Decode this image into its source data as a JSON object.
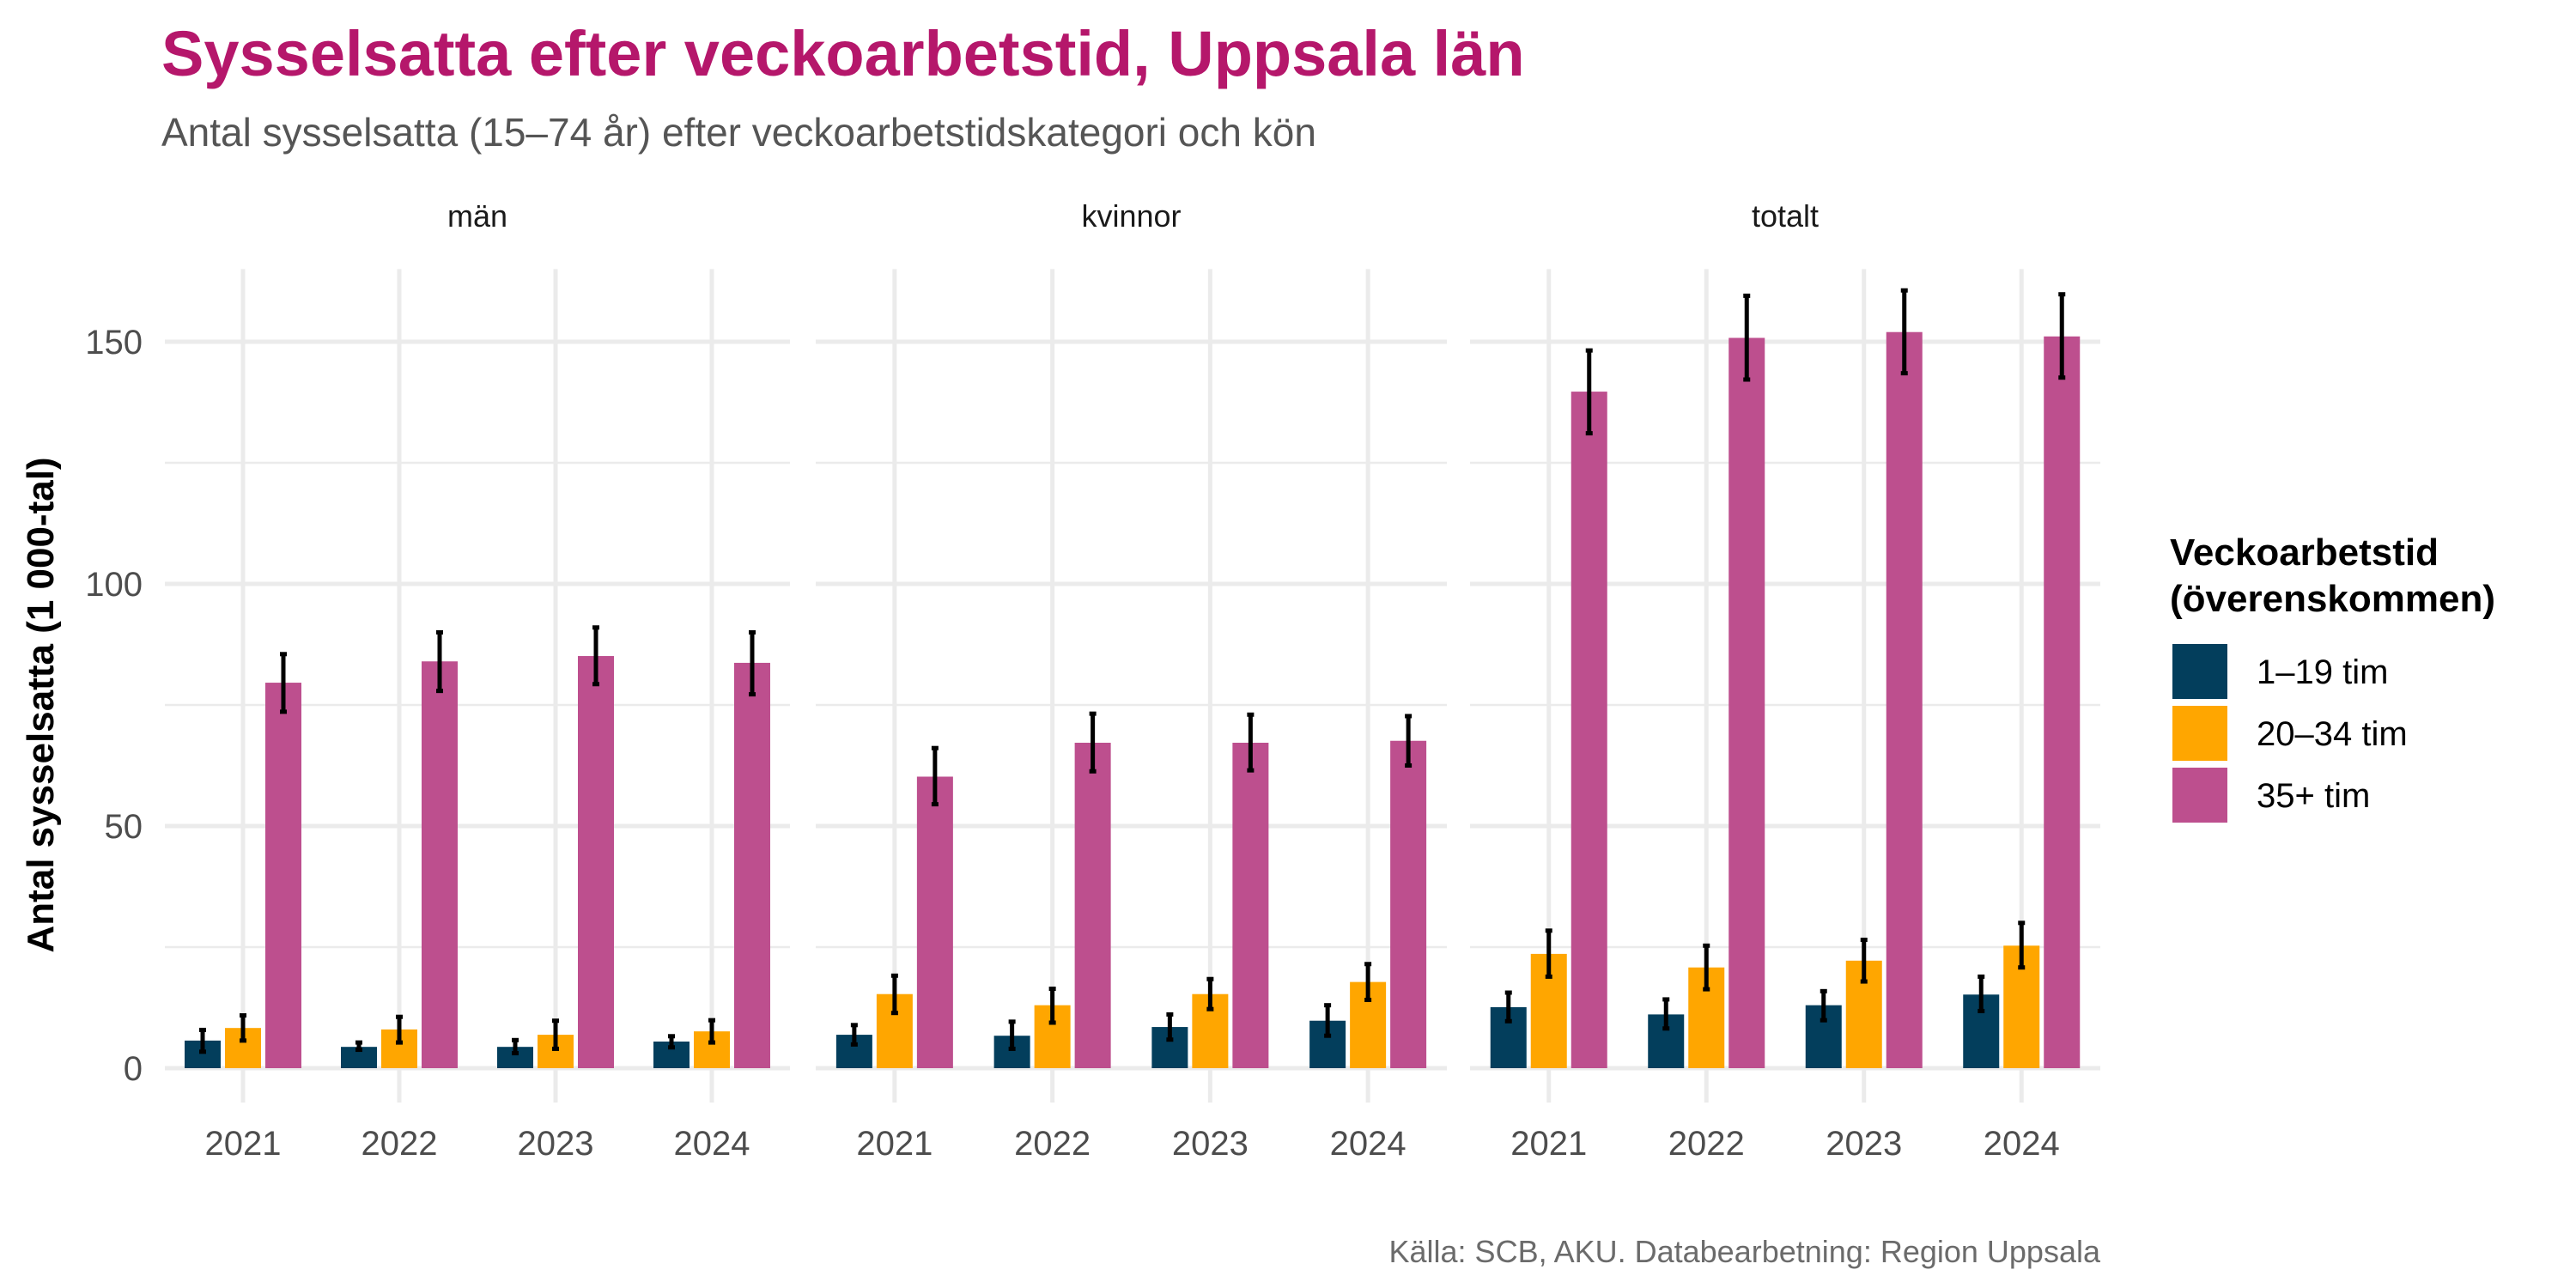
{
  "colors": {
    "title": "#B5176B",
    "1–19 tim": "#033E5C",
    "20–34 tim": "#FFA600",
    "35+ tim": "#BD4F8E"
  },
  "chart_data": {
    "type": "bar",
    "title": "Sysselsatta efter veckoarbetstid, Uppsala län",
    "subtitle": "Antal sysselsatta (15–74 år) efter veckoarbetstidskategori och kön",
    "xlabel": "",
    "ylabel": "Antal sysselsatta (1 000-tal)",
    "ylim": [
      0,
      165
    ],
    "yticks": [
      0,
      50,
      100,
      150
    ],
    "ytick_labels": [
      "0",
      "50",
      "100",
      "150"
    ],
    "grid": true,
    "legend": {
      "title": "Veckoarbetstid (överenskommen)",
      "title_lines": [
        "Veckoarbetstid",
        "(överenskommen)"
      ],
      "placement": "right",
      "entries": [
        "1–19 tim",
        "20–34 tim",
        "35+ tim"
      ]
    },
    "categories": [
      "2021",
      "2022",
      "2023",
      "2024"
    ],
    "facets": [
      {
        "name": "män",
        "series": [
          {
            "name": "1–19 tim",
            "values": [
              5.7,
              4.4,
              4.4,
              5.5
            ],
            "err_low": [
              3.4,
              3.8,
              3.1,
              4.3
            ],
            "err_high": [
              7.9,
              5.3,
              5.8,
              6.6
            ]
          },
          {
            "name": "20–34 tim",
            "values": [
              8.3,
              8.0,
              6.9,
              7.6
            ],
            "err_low": [
              5.7,
              5.3,
              4.0,
              5.3
            ],
            "err_high": [
              10.9,
              10.6,
              9.8,
              9.9
            ]
          },
          {
            "name": "35+ tim",
            "values": [
              79.6,
              84.0,
              85.1,
              83.7
            ],
            "err_low": [
              73.6,
              77.9,
              79.3,
              77.2
            ],
            "err_high": [
              85.5,
              90.0,
              91.0,
              90.0
            ]
          }
        ]
      },
      {
        "name": "kvinnor",
        "series": [
          {
            "name": "1–19 tim",
            "values": [
              6.9,
              6.7,
              8.5,
              9.8
            ],
            "err_low": [
              4.9,
              4.0,
              5.9,
              6.7
            ],
            "err_high": [
              8.9,
              9.6,
              11.1,
              13.0
            ]
          },
          {
            "name": "20–34 tim",
            "values": [
              15.3,
              13.0,
              15.3,
              17.8
            ],
            "err_low": [
              11.4,
              9.4,
              12.2,
              14.1
            ],
            "err_high": [
              19.1,
              16.4,
              18.4,
              21.5
            ]
          },
          {
            "name": "35+ tim",
            "values": [
              60.2,
              67.2,
              67.2,
              67.6
            ],
            "err_low": [
              54.5,
              61.3,
              61.5,
              62.5
            ],
            "err_high": [
              66.1,
              73.2,
              73.0,
              72.7
            ]
          }
        ]
      },
      {
        "name": "totalt",
        "series": [
          {
            "name": "1–19 tim",
            "values": [
              12.6,
              11.1,
              13.0,
              15.2
            ],
            "err_low": [
              9.7,
              8.2,
              9.9,
              11.8
            ],
            "err_high": [
              15.6,
              14.2,
              15.9,
              18.9
            ]
          },
          {
            "name": "20–34 tim",
            "values": [
              23.6,
              20.8,
              22.2,
              25.3
            ],
            "err_low": [
              18.9,
              16.3,
              17.9,
              20.8
            ],
            "err_high": [
              28.4,
              25.3,
              26.5,
              30.0
            ]
          },
          {
            "name": "35+ tim",
            "values": [
              139.7,
              150.8,
              152.0,
              151.1
            ],
            "err_low": [
              131.1,
              142.2,
              143.5,
              142.6
            ],
            "err_high": [
              148.2,
              159.5,
              160.6,
              159.8
            ]
          }
        ]
      }
    ],
    "caption": "Källa: SCB, AKU. Databearbetning: Region Uppsala"
  }
}
